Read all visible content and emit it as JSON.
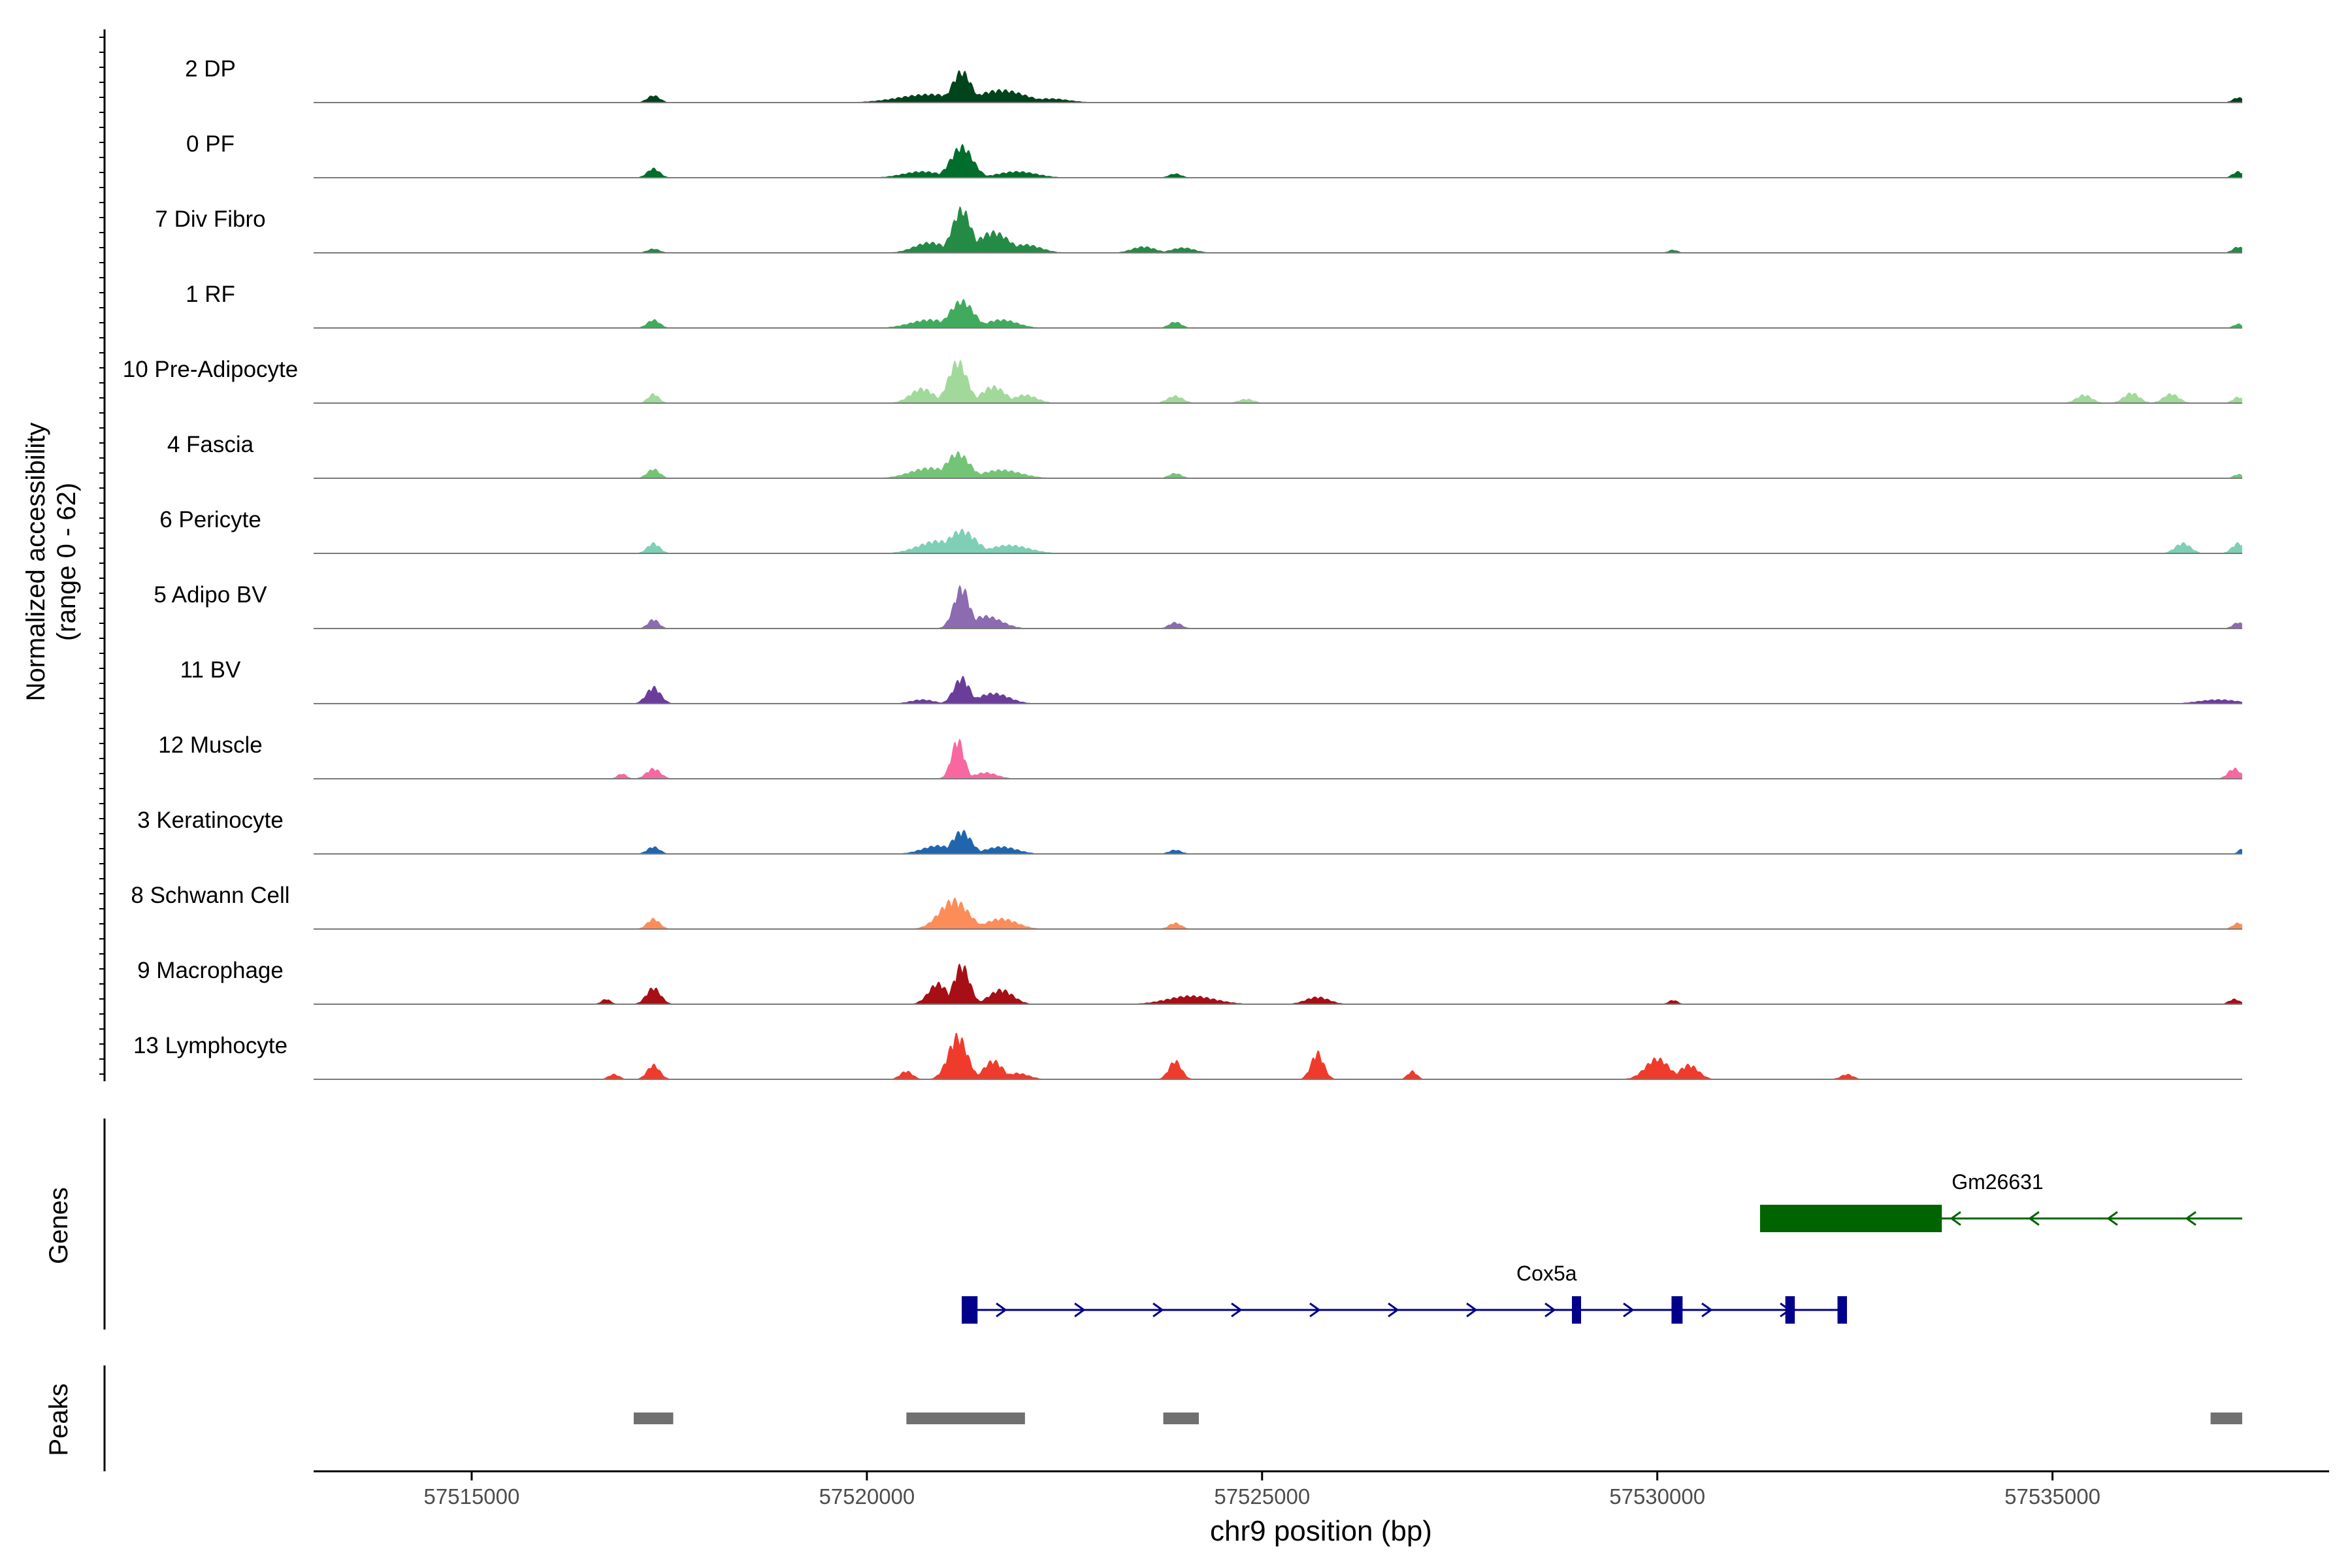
{
  "chart_data": {
    "type": "area",
    "title": "",
    "ylabel": "Normalized accessibility",
    "ylabel_sub": "(range 0 - 62)",
    "xlabel": "chr9 position (bp)",
    "xlim": [
      57513000,
      57538500
    ],
    "track_span": [
      57513000,
      57537400
    ],
    "ylim": [
      0,
      62
    ],
    "x_ticks": [
      57515000,
      57520000,
      57525000,
      57530000,
      57535000
    ],
    "x_tick_labels": [
      "57515000",
      "57520000",
      "57525000",
      "57530000",
      "57535000"
    ],
    "panel_labels": {
      "genes": "Genes",
      "peaks": "Peaks"
    },
    "series": [
      {
        "name": "2 DP",
        "color": "#00441B",
        "peaks": [
          [
            57517300,
            7,
            80
          ],
          [
            57520800,
            8,
            400
          ],
          [
            57521200,
            30,
            120
          ],
          [
            57521700,
            12,
            300
          ],
          [
            57522300,
            4,
            250
          ],
          [
            57537350,
            5,
            70
          ]
        ]
      },
      {
        "name": "0 PF",
        "color": "#006D2C",
        "peaks": [
          [
            57517300,
            9,
            80
          ],
          [
            57520700,
            6,
            250
          ],
          [
            57521200,
            30,
            140
          ],
          [
            57521900,
            6,
            250
          ],
          [
            57523900,
            4,
            80
          ],
          [
            57537350,
            6,
            70
          ]
        ]
      },
      {
        "name": "7 Div Fibro",
        "color": "#238B45",
        "peaks": [
          [
            57517300,
            4,
            80
          ],
          [
            57520800,
            10,
            200
          ],
          [
            57521200,
            42,
            120
          ],
          [
            57521600,
            20,
            200
          ],
          [
            57522000,
            8,
            200
          ],
          [
            57523500,
            6,
            150
          ],
          [
            57524000,
            5,
            150
          ],
          [
            57530200,
            3,
            60
          ],
          [
            57537350,
            6,
            70
          ]
        ]
      },
      {
        "name": "1 RF",
        "color": "#41AB5D",
        "peaks": [
          [
            57517300,
            8,
            80
          ],
          [
            57520800,
            8,
            250
          ],
          [
            57521200,
            26,
            150
          ],
          [
            57521700,
            8,
            200
          ],
          [
            57523900,
            6,
            80
          ],
          [
            57537350,
            4,
            60
          ]
        ]
      },
      {
        "name": "10 Pre-Adipocyte",
        "color": "#A1D99B",
        "peaks": [
          [
            57517300,
            9,
            70
          ],
          [
            57520700,
            14,
            150
          ],
          [
            57521150,
            40,
            120
          ],
          [
            57521600,
            16,
            150
          ],
          [
            57522000,
            8,
            150
          ],
          [
            57523900,
            7,
            100
          ],
          [
            57524800,
            4,
            100
          ],
          [
            57535400,
            8,
            100
          ],
          [
            57536000,
            10,
            100
          ],
          [
            57536500,
            9,
            100
          ],
          [
            57537350,
            6,
            70
          ]
        ]
      },
      {
        "name": "4 Fascia",
        "color": "#74C476",
        "peaks": [
          [
            57517300,
            9,
            80
          ],
          [
            57520800,
            10,
            250
          ],
          [
            57521150,
            24,
            150
          ],
          [
            57521700,
            8,
            250
          ],
          [
            57523900,
            5,
            80
          ],
          [
            57537350,
            4,
            60
          ]
        ]
      },
      {
        "name": "6 Pericyte",
        "color": "#7ECFB6",
        "peaks": [
          [
            57517300,
            10,
            80
          ],
          [
            57520900,
            12,
            250
          ],
          [
            57521200,
            22,
            180
          ],
          [
            57521800,
            8,
            250
          ],
          [
            57536650,
            10,
            100
          ],
          [
            57537350,
            10,
            80
          ]
        ]
      },
      {
        "name": "5 Adipo BV",
        "color": "#8C6BB1",
        "peaks": [
          [
            57517300,
            9,
            70
          ],
          [
            57521200,
            40,
            100
          ],
          [
            57521500,
            12,
            200
          ],
          [
            57523900,
            6,
            80
          ],
          [
            57537350,
            6,
            70
          ]
        ]
      },
      {
        "name": "11 BV",
        "color": "#6A3D9A",
        "peaks": [
          [
            57517300,
            16,
            90
          ],
          [
            57521200,
            25,
            100
          ],
          [
            57521600,
            10,
            200
          ],
          [
            57520700,
            4,
            150
          ],
          [
            57537100,
            4,
            250
          ]
        ]
      },
      {
        "name": "12 Muscle",
        "color": "#F768A1",
        "peaks": [
          [
            57517300,
            10,
            90
          ],
          [
            57516900,
            5,
            60
          ],
          [
            57521150,
            38,
            80
          ],
          [
            57521500,
            6,
            150
          ],
          [
            57537300,
            10,
            80
          ]
        ]
      },
      {
        "name": "3 Keratinocyte",
        "color": "#2166AC",
        "peaks": [
          [
            57517300,
            7,
            80
          ],
          [
            57520900,
            8,
            200
          ],
          [
            57521200,
            22,
            120
          ],
          [
            57521700,
            7,
            200
          ],
          [
            57523900,
            4,
            80
          ],
          [
            57537400,
            5,
            50
          ]
        ]
      },
      {
        "name": "8 Schwann Cell",
        "color": "#FC8D59",
        "peaks": [
          [
            57517300,
            10,
            80
          ],
          [
            57521100,
            28,
            180
          ],
          [
            57521700,
            10,
            200
          ],
          [
            57523900,
            6,
            80
          ],
          [
            57537350,
            6,
            70
          ]
        ]
      },
      {
        "name": "9 Macrophage",
        "color": "#A50F15",
        "peaks": [
          [
            57517300,
            16,
            90
          ],
          [
            57516700,
            5,
            60
          ],
          [
            57520900,
            20,
            120
          ],
          [
            57521200,
            38,
            100
          ],
          [
            57521700,
            14,
            150
          ],
          [
            57524100,
            8,
            300
          ],
          [
            57525700,
            7,
            150
          ],
          [
            57530200,
            4,
            60
          ],
          [
            57537300,
            5,
            70
          ]
        ]
      },
      {
        "name": "13 Lymphocyte",
        "color": "#EF3B2C",
        "peaks": [
          [
            57517300,
            14,
            80
          ],
          [
            57516800,
            5,
            70
          ],
          [
            57520500,
            8,
            80
          ],
          [
            57521150,
            42,
            120
          ],
          [
            57521600,
            18,
            120
          ],
          [
            57521900,
            6,
            150
          ],
          [
            57523900,
            18,
            80
          ],
          [
            57525700,
            26,
            80
          ],
          [
            57526900,
            8,
            60
          ],
          [
            57530000,
            20,
            150
          ],
          [
            57530400,
            14,
            120
          ],
          [
            57532400,
            5,
            80
          ]
        ]
      }
    ],
    "genes": [
      {
        "name": "Gm26631",
        "strand": "-",
        "color": "#006400",
        "start": 57531300,
        "end": 57537400,
        "exons": [
          [
            57531300,
            57533600
          ]
        ]
      },
      {
        "name": "Cox5a",
        "strand": "+",
        "color": "#00008B",
        "start": 57521200,
        "end": 57532400,
        "exons": [
          [
            57521200,
            57521400
          ],
          [
            57528920,
            57529020
          ],
          [
            57530180,
            57530320
          ],
          [
            57531620,
            57531740
          ],
          [
            57532280,
            57532400
          ]
        ]
      }
    ],
    "peaks": [
      [
        57517050,
        57517550
      ],
      [
        57520500,
        57522000
      ],
      [
        57523750,
        57524200
      ],
      [
        57537000,
        57537400
      ]
    ]
  }
}
